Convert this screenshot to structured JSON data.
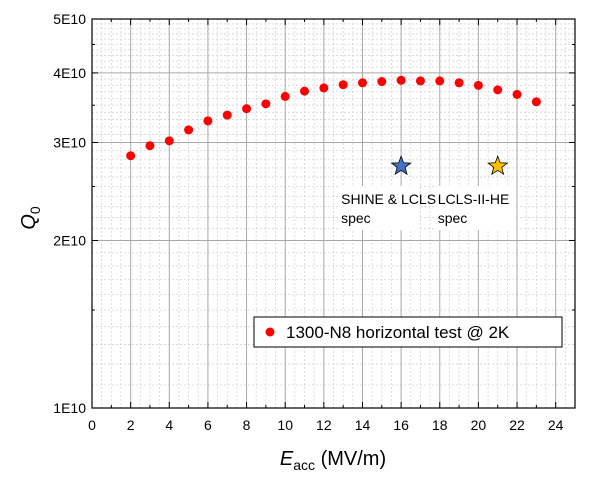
{
  "chart_data": {
    "type": "scatter",
    "y_scale": "log",
    "xlim": [
      0,
      25
    ],
    "ylim": [
      10000000000.0,
      50000000000.0
    ],
    "x_ticks": [
      0,
      2,
      4,
      6,
      8,
      10,
      12,
      14,
      16,
      18,
      20,
      22,
      24
    ],
    "x_tick_labels": [
      "0",
      "2",
      "4",
      "6",
      "8",
      "10",
      "12",
      "14",
      "16",
      "18",
      "20",
      "22",
      "24"
    ],
    "y_ticks": [
      10000000000.0,
      20000000000.0,
      30000000000.0,
      40000000000.0,
      50000000000.0
    ],
    "y_tick_labels": [
      "1E10",
      "2E10",
      "3E10",
      "4E10",
      "5E10"
    ],
    "xlabel": {
      "main": "E",
      "sub": "acc",
      "rest": " (MV/m)"
    },
    "ylabel": {
      "main": "Q",
      "sub": "0"
    },
    "grid": true,
    "legend_position": "lower-right",
    "series": [
      {
        "name": "1300-N8 horizontal test @ 2K",
        "color": "#ff0000",
        "x": [
          2,
          3,
          4,
          5,
          6,
          7,
          8,
          9,
          10,
          11,
          12,
          13,
          14,
          15,
          16,
          17,
          18,
          19,
          20,
          21,
          22,
          23
        ],
        "y": [
          28400000000.0,
          29600000000.0,
          30200000000.0,
          31600000000.0,
          32800000000.0,
          33600000000.0,
          34500000000.0,
          35200000000.0,
          36300000000.0,
          37100000000.0,
          37600000000.0,
          38100000000.0,
          38400000000.0,
          38600000000.0,
          38800000000.0,
          38700000000.0,
          38700000000.0,
          38400000000.0,
          38000000000.0,
          37300000000.0,
          36600000000.0,
          35500000000.0
        ]
      }
    ],
    "annotations": [
      {
        "name": "shine-lcls-ii-spec",
        "x": 16,
        "y": 27200000000.0,
        "color": "#4472c4",
        "lines": [
          "SHINE & LCLS-II",
          "spec"
        ]
      },
      {
        "name": "lcls-ii-he-spec",
        "x": 21,
        "y": 27200000000.0,
        "color": "#ffc000",
        "lines": [
          "LCLS-II-HE",
          "spec"
        ]
      }
    ]
  }
}
